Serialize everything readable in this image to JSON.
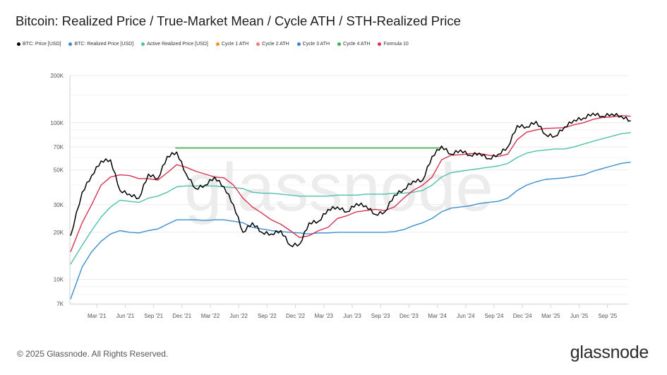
{
  "title": "Bitcoin: Realized Price / True-Market Mean / Cycle ATH / STH-Realized Price",
  "footer": "© 2025 Glassnode. All Rights Reserved.",
  "logo": "glassnode",
  "watermark": "glassnode",
  "chart_data": {
    "type": "line",
    "title": "Bitcoin: Realized Price / True-Market Mean / Cycle ATH / STH-Realized Price",
    "xlabel": "",
    "ylabel": "",
    "yscale": "log",
    "ylim": [
      7000,
      200000
    ],
    "xlim": [
      "2020-12",
      "2025-11"
    ],
    "grid": true,
    "legend_position": "top-left",
    "y_ticks": [
      {
        "value": 7000,
        "label": "7K"
      },
      {
        "value": 10000,
        "label": "10K"
      },
      {
        "value": 20000,
        "label": "20K"
      },
      {
        "value": 30000,
        "label": "30K"
      },
      {
        "value": 50000,
        "label": "50K"
      },
      {
        "value": 70000,
        "label": "70K"
      },
      {
        "value": 100000,
        "label": "100K"
      },
      {
        "value": 200000,
        "label": "200K"
      }
    ],
    "x_ticks": [
      {
        "date": "2021-03",
        "label": "Mar '21"
      },
      {
        "date": "2021-06",
        "label": "Jun '21"
      },
      {
        "date": "2021-09",
        "label": "Sep '21"
      },
      {
        "date": "2021-12",
        "label": "Dec '21"
      },
      {
        "date": "2022-03",
        "label": "Mar '22"
      },
      {
        "date": "2022-06",
        "label": "Jun '22"
      },
      {
        "date": "2022-09",
        "label": "Sep '22"
      },
      {
        "date": "2022-12",
        "label": "Dec '22"
      },
      {
        "date": "2023-03",
        "label": "Mar '23"
      },
      {
        "date": "2023-06",
        "label": "Jun '23"
      },
      {
        "date": "2023-09",
        "label": "Sep '23"
      },
      {
        "date": "2023-12",
        "label": "Dec '23"
      },
      {
        "date": "2024-03",
        "label": "Mar '24"
      },
      {
        "date": "2024-06",
        "label": "Jun '24"
      },
      {
        "date": "2024-09",
        "label": "Sep '24"
      },
      {
        "date": "2024-12",
        "label": "Dec '24"
      },
      {
        "date": "2025-03",
        "label": "Mar '25"
      },
      {
        "date": "2025-06",
        "label": "Jun '25"
      },
      {
        "date": "2025-09",
        "label": "Sep '25"
      }
    ],
    "legend": [
      {
        "name": "BTC: Price [USD]",
        "color": "#000000"
      },
      {
        "name": "BTC: Realized Price [USD]",
        "color": "#3b8ed0"
      },
      {
        "name": "Active Realized Price [USD]",
        "color": "#4fc1a8"
      },
      {
        "name": "Cycle 1 ATH",
        "color": "#f7931a"
      },
      {
        "name": "Cycle 2 ATH",
        "color": "#f27b7b"
      },
      {
        "name": "Cycle 3 ATH",
        "color": "#3d7fe0"
      },
      {
        "name": "Cycle 4 ATH",
        "color": "#3cb44b"
      },
      {
        "name": "Formula 10",
        "color": "#d6334f"
      }
    ],
    "dates": [
      "2020-12",
      "2021-01",
      "2021-02",
      "2021-03",
      "2021-04",
      "2021-05",
      "2021-06",
      "2021-07",
      "2021-08",
      "2021-09",
      "2021-10",
      "2021-11",
      "2021-12",
      "2022-01",
      "2022-02",
      "2022-03",
      "2022-04",
      "2022-05",
      "2022-06",
      "2022-07",
      "2022-08",
      "2022-09",
      "2022-10",
      "2022-11",
      "2022-12",
      "2023-01",
      "2023-02",
      "2023-03",
      "2023-04",
      "2023-05",
      "2023-06",
      "2023-07",
      "2023-08",
      "2023-09",
      "2023-10",
      "2023-11",
      "2023-12",
      "2024-01",
      "2024-02",
      "2024-03",
      "2024-04",
      "2024-05",
      "2024-06",
      "2024-07",
      "2024-08",
      "2024-09",
      "2024-10",
      "2024-11",
      "2024-12",
      "2025-01",
      "2025-02",
      "2025-03",
      "2025-04",
      "2025-05",
      "2025-06",
      "2025-07",
      "2025-08",
      "2025-09",
      "2025-10",
      "2025-11"
    ],
    "series": [
      {
        "name": "BTC: Price [USD]",
        "color": "#000000",
        "values": [
          19000,
          36000,
          46000,
          57000,
          58000,
          37000,
          35000,
          33000,
          47000,
          44000,
          61000,
          65000,
          47000,
          38000,
          40000,
          45000,
          39000,
          30000,
          20000,
          23000,
          20000,
          19500,
          20500,
          16500,
          16800,
          23000,
          23500,
          28000,
          29000,
          27000,
          30500,
          29500,
          26000,
          27000,
          34500,
          37500,
          42500,
          43000,
          61000,
          71000,
          63000,
          67000,
          62000,
          64000,
          59000,
          63000,
          70000,
          96000,
          94000,
          102000,
          84000,
          82000,
          94000,
          104000,
          107000,
          115000,
          110000,
          114000,
          110000,
          103000
        ]
      },
      {
        "name": "BTC: Realized Price [USD]",
        "color": "#3b8ed0",
        "values": [
          7500,
          12000,
          15000,
          17500,
          19500,
          20500,
          20000,
          19800,
          20500,
          21000,
          22500,
          24000,
          24000,
          24000,
          23800,
          24000,
          24000,
          23500,
          23000,
          21500,
          21000,
          20500,
          20200,
          20000,
          19800,
          19500,
          19800,
          19800,
          20000,
          20000,
          20000,
          20000,
          20000,
          20000,
          20200,
          20800,
          22000,
          23000,
          24500,
          27000,
          28500,
          29000,
          29500,
          30500,
          31000,
          31500,
          33000,
          37000,
          40000,
          42000,
          43500,
          44000,
          44500,
          45500,
          46500,
          49000,
          51000,
          53000,
          55000,
          56000
        ]
      },
      {
        "name": "Active Realized Price [USD]",
        "color": "#4fc1a8",
        "values": [
          12500,
          16500,
          20500,
          25000,
          29000,
          32000,
          31500,
          31000,
          33000,
          34000,
          36000,
          39000,
          39500,
          39500,
          39500,
          39500,
          39000,
          38500,
          38000,
          36000,
          35500,
          35500,
          35000,
          34500,
          34000,
          34000,
          34000,
          34000,
          34500,
          34500,
          34500,
          35000,
          35000,
          35000,
          35500,
          35500,
          36000,
          37000,
          40000,
          45000,
          48000,
          49000,
          50000,
          51000,
          52000,
          53000,
          55000,
          60000,
          64000,
          66000,
          67000,
          68000,
          68000,
          70000,
          73000,
          76000,
          79000,
          82000,
          85000,
          86500
        ]
      },
      {
        "name": "Formula 10",
        "color": "#d6334f",
        "values": [
          15000,
          23000,
          30000,
          40000,
          45000,
          46500,
          46000,
          44000,
          44000,
          43000,
          48000,
          54000,
          52000,
          49000,
          47000,
          45000,
          44500,
          40000,
          33000,
          29000,
          26500,
          24000,
          22500,
          20500,
          18500,
          19000,
          20500,
          21500,
          24500,
          25500,
          27000,
          27500,
          28000,
          27500,
          29000,
          33000,
          37000,
          40000,
          45000,
          58000,
          62000,
          62500,
          63500,
          63500,
          62000,
          61000,
          63000,
          78000,
          87000,
          90000,
          92000,
          92500,
          93000,
          97000,
          100000,
          105000,
          108000,
          109000,
          111000,
          110000
        ]
      }
    ],
    "cycle_4_ath": {
      "name": "Cycle 4 ATH",
      "color": "#3cb44b",
      "value": 69000,
      "start": "2021-11",
      "end": "2024-03"
    }
  }
}
